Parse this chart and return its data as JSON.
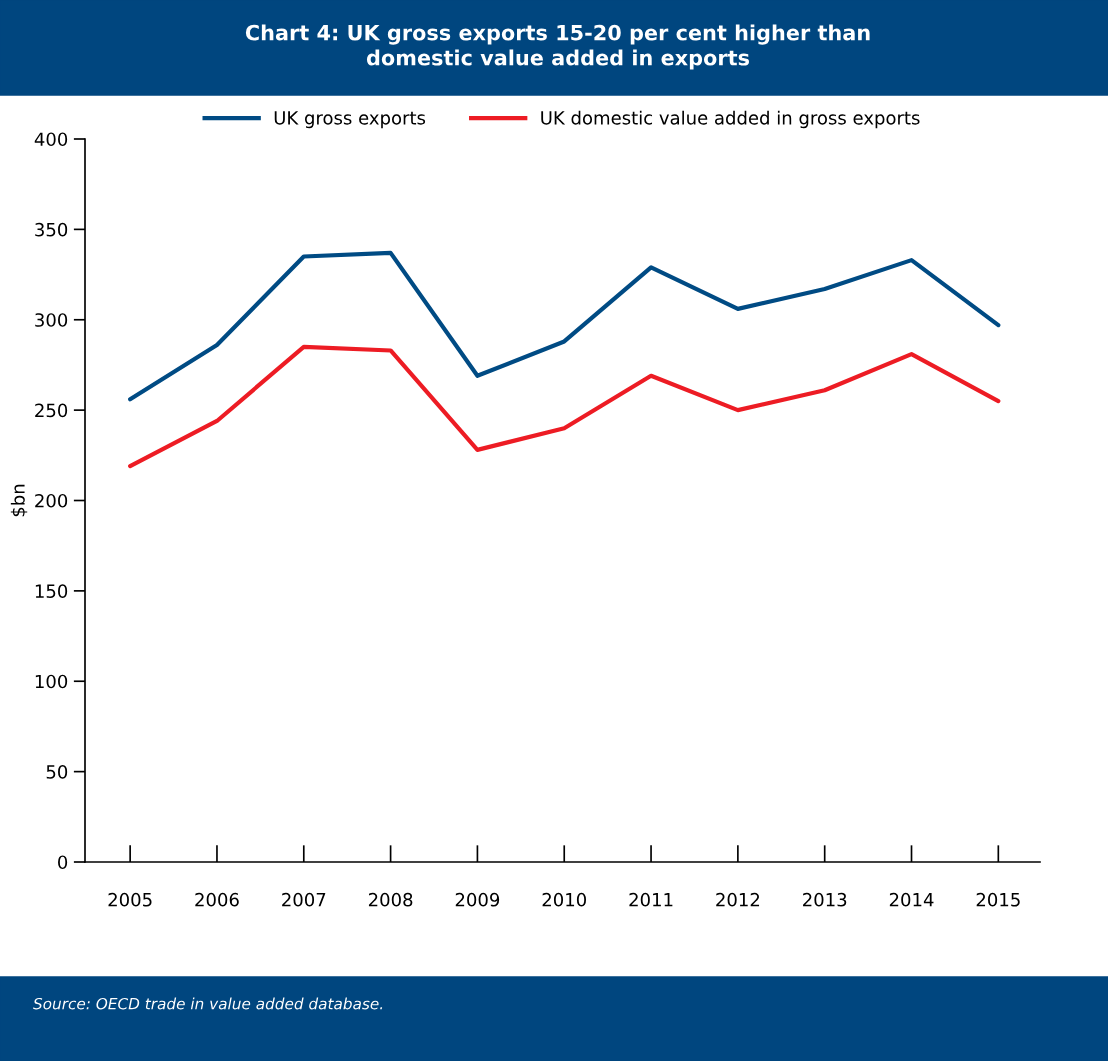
{
  "chart_data": {
    "type": "line",
    "title": "Chart 4: UK gross exports 15-20 per cent higher than\ndomestic value added in exports",
    "ylabel": "$bn",
    "categories": [
      "2005",
      "2006",
      "2007",
      "2008",
      "2009",
      "2010",
      "2011",
      "2012",
      "2013",
      "2014",
      "2015"
    ],
    "series": [
      {
        "name": "UK gross exports",
        "color": "#004b84",
        "values": [
          256,
          286,
          335,
          337,
          269,
          288,
          329,
          306,
          317,
          333,
          297
        ]
      },
      {
        "name": "UK domestic value added in gross exports",
        "color": "#ed1c24",
        "values": [
          219,
          244,
          285,
          283,
          228,
          240,
          269,
          250,
          261,
          281,
          255
        ]
      }
    ],
    "ylim": [
      0,
      400
    ],
    "yticks": [
      0,
      50,
      100,
      150,
      200,
      250,
      300,
      350,
      400
    ],
    "grid": false,
    "legend": "top",
    "marker": "none",
    "line_style": "solid",
    "annotations": [
      "Source: OECD trade in value added database."
    ]
  }
}
